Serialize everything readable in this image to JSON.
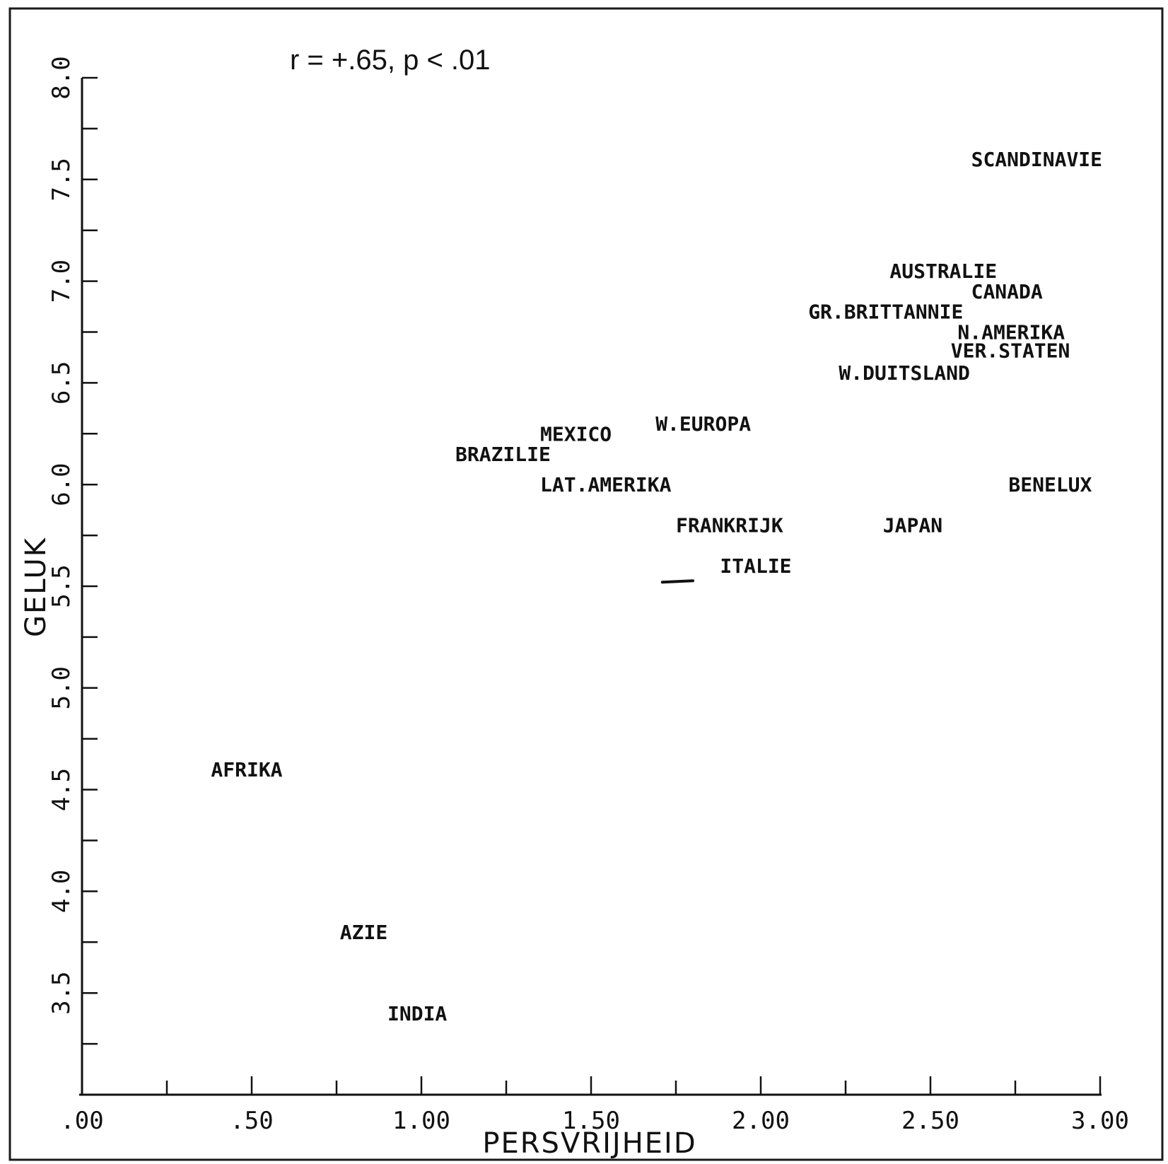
{
  "chart_data": {
    "type": "scatter",
    "annotation": "r = +.65, p < .01",
    "xlabel": "PERSVRIJHEID",
    "ylabel": "GELUK",
    "xlim": [
      0.0,
      3.0
    ],
    "ylim": [
      3.0,
      8.0
    ],
    "x_ticks": [
      {
        "value": 0.0,
        "label": ".00"
      },
      {
        "value": 0.5,
        "label": ".50"
      },
      {
        "value": 1.0,
        "label": "1.00"
      },
      {
        "value": 1.5,
        "label": "1.50"
      },
      {
        "value": 2.0,
        "label": "2.00"
      },
      {
        "value": 2.5,
        "label": "2.50"
      },
      {
        "value": 3.0,
        "label": "3.00"
      }
    ],
    "x_minor_ticks": [
      0.25,
      0.75,
      1.25,
      1.75,
      2.25,
      2.75
    ],
    "y_ticks": [
      {
        "value": 3.5,
        "label": "3.5"
      },
      {
        "value": 4.0,
        "label": "4.0"
      },
      {
        "value": 4.5,
        "label": "4.5"
      },
      {
        "value": 5.0,
        "label": "5.0"
      },
      {
        "value": 5.5,
        "label": "5.5"
      },
      {
        "value": 6.0,
        "label": "6.0"
      },
      {
        "value": 6.5,
        "label": "6.5"
      },
      {
        "value": 7.0,
        "label": "7.0"
      },
      {
        "value": 7.5,
        "label": "7.5"
      },
      {
        "value": 8.0,
        "label": "8.0"
      }
    ],
    "y_minor_ticks": [
      3.25,
      3.75,
      4.25,
      4.75,
      5.25,
      5.75,
      6.25,
      6.75,
      7.25,
      7.75
    ],
    "points": [
      {
        "label": "SCANDINAVIE",
        "x": 2.62,
        "y": 7.6
      },
      {
        "label": "AUSTRALIE",
        "x": 2.38,
        "y": 7.05
      },
      {
        "label": "CANADA",
        "x": 2.62,
        "y": 6.95
      },
      {
        "label": "GR.BRITTANNIE",
        "x": 2.14,
        "y": 6.85
      },
      {
        "label": "N.AMERIKA",
        "x": 2.58,
        "y": 6.75
      },
      {
        "label": "VER.STATEN",
        "x": 2.56,
        "y": 6.66
      },
      {
        "label": "W.DUITSLAND",
        "x": 2.23,
        "y": 6.55
      },
      {
        "label": "W.EUROPA",
        "x": 1.69,
        "y": 6.3
      },
      {
        "label": "MEXICO",
        "x": 1.35,
        "y": 6.25
      },
      {
        "label": "BRAZILIE",
        "x": 1.1,
        "y": 6.15
      },
      {
        "label": "LAT.AMERIKA",
        "x": 1.35,
        "y": 6.0
      },
      {
        "label": "BENELUX",
        "x": 2.73,
        "y": 6.0
      },
      {
        "label": "FRANKRIJK",
        "x": 1.75,
        "y": 5.8
      },
      {
        "label": "JAPAN",
        "x": 2.36,
        "y": 5.8
      },
      {
        "label": "ITALIE",
        "x": 1.88,
        "y": 5.6
      },
      {
        "label": "AFRIKA",
        "x": 0.38,
        "y": 4.6
      },
      {
        "label": "AZIE",
        "x": 0.76,
        "y": 3.8
      },
      {
        "label": "INDIA",
        "x": 0.9,
        "y": 3.4
      }
    ],
    "marks": [
      {
        "x1": 1.71,
        "x2": 1.8,
        "y": 5.52
      }
    ],
    "grid": false
  }
}
